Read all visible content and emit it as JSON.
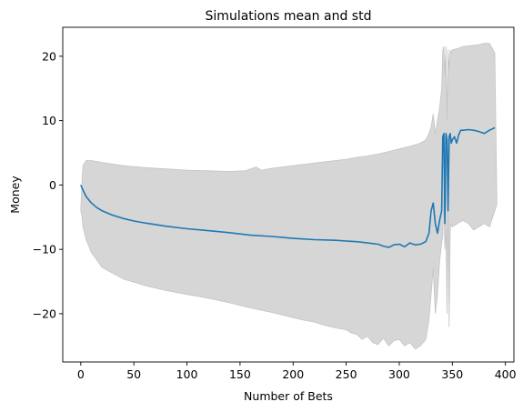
{
  "chart_data": {
    "type": "line",
    "title": "Simulations mean and std",
    "xlabel": "Number of Bets",
    "ylabel": "Money",
    "xlim": [
      -17,
      408
    ],
    "ylim": [
      -27.5,
      24.5
    ],
    "x_ticks": [
      0,
      50,
      100,
      150,
      200,
      250,
      300,
      350,
      400
    ],
    "y_ticks": [
      -20,
      -10,
      0,
      10,
      20
    ],
    "grid": false,
    "legend": "none",
    "colors": {
      "mean_line": "#1f77b4",
      "std_band": "#d6d6d6",
      "std_band_edge": "#c4c4c4"
    },
    "series": [
      {
        "role": "mean",
        "x": [
          0,
          2,
          5,
          10,
          15,
          20,
          30,
          40,
          50,
          60,
          80,
          100,
          120,
          140,
          160,
          180,
          200,
          220,
          240,
          250,
          260,
          270,
          280,
          285,
          290,
          295,
          300,
          305,
          310,
          315,
          320,
          325,
          328,
          330,
          332,
          334,
          336,
          338,
          340,
          341,
          342,
          343,
          344,
          345,
          346,
          347,
          348,
          349,
          350,
          352,
          354,
          356,
          358,
          360,
          365,
          370,
          375,
          380,
          385,
          390
        ],
        "values": [
          0,
          -0.8,
          -1.8,
          -2.8,
          -3.5,
          -4.0,
          -4.7,
          -5.2,
          -5.6,
          -5.9,
          -6.4,
          -6.8,
          -7.1,
          -7.4,
          -7.8,
          -8.0,
          -8.3,
          -8.5,
          -8.6,
          -8.7,
          -8.8,
          -9.0,
          -9.2,
          -9.5,
          -9.7,
          -9.3,
          -9.2,
          -9.6,
          -9.0,
          -9.3,
          -9.2,
          -8.8,
          -7.5,
          -4.0,
          -2.8,
          -6.0,
          -7.5,
          -5.5,
          -4.0,
          7.5,
          8.0,
          -6.0,
          8.0,
          7.0,
          -4.0,
          7.5,
          8.0,
          6.5,
          7.0,
          7.5,
          6.5,
          7.8,
          8.5,
          8.5,
          8.6,
          8.5,
          8.3,
          8.0,
          8.5,
          8.9
        ]
      },
      {
        "role": "std_upper",
        "x": [
          0,
          1,
          2,
          5,
          10,
          20,
          40,
          60,
          80,
          100,
          120,
          140,
          155,
          160,
          165,
          170,
          180,
          200,
          220,
          240,
          250,
          260,
          270,
          280,
          290,
          300,
          310,
          320,
          325,
          328,
          330,
          332,
          334,
          336,
          338,
          340,
          341,
          342,
          343,
          344,
          345,
          346,
          347,
          348,
          349,
          350,
          355,
          360,
          365,
          370,
          375,
          380,
          385,
          390,
          392
        ],
        "values": [
          -4.0,
          0.0,
          3.0,
          3.8,
          3.8,
          3.5,
          3.0,
          2.7,
          2.5,
          2.3,
          2.2,
          2.1,
          2.2,
          2.5,
          2.8,
          2.3,
          2.6,
          3.0,
          3.4,
          3.8,
          4.0,
          4.3,
          4.5,
          4.8,
          5.2,
          5.6,
          6.0,
          6.5,
          7.0,
          8.0,
          9.0,
          11.0,
          8.0,
          10.0,
          12.0,
          15.0,
          21.0,
          21.5,
          17.0,
          21.5,
          10.0,
          21.0,
          18.0,
          21.0,
          20.5,
          21.0,
          21.2,
          21.5,
          21.6,
          21.7,
          21.8,
          22.0,
          22.0,
          20.5,
          -3.0
        ]
      },
      {
        "role": "std_lower",
        "x": [
          0,
          1,
          2,
          5,
          10,
          20,
          40,
          60,
          80,
          100,
          120,
          140,
          160,
          180,
          200,
          210,
          220,
          230,
          240,
          250,
          255,
          260,
          265,
          270,
          275,
          280,
          285,
          290,
          295,
          300,
          305,
          310,
          315,
          320,
          325,
          328,
          330,
          332,
          334,
          336,
          338,
          340,
          341,
          342,
          343,
          344,
          345,
          346,
          347,
          348,
          349,
          350,
          355,
          360,
          365,
          370,
          375,
          380,
          385,
          390,
          392
        ],
        "values": [
          -4.0,
          -4.8,
          -6.5,
          -8.5,
          -10.5,
          -12.8,
          -14.6,
          -15.6,
          -16.4,
          -17.0,
          -17.6,
          -18.3,
          -19.1,
          -19.8,
          -20.6,
          -21.0,
          -21.3,
          -21.8,
          -22.2,
          -22.5,
          -23.0,
          -23.2,
          -24.0,
          -23.5,
          -24.5,
          -24.8,
          -23.8,
          -25.0,
          -24.2,
          -24.0,
          -25.0,
          -24.5,
          -25.5,
          -25.0,
          -24.0,
          -21.0,
          -17.0,
          -13.0,
          -20.0,
          -17.0,
          -12.0,
          -9.0,
          -8.0,
          -2.0,
          -10.0,
          -7.0,
          -20.0,
          -4.0,
          -22.0,
          -7.0,
          -6.0,
          -6.5,
          -6.0,
          -5.5,
          -6.0,
          -7.0,
          -6.5,
          -6.0,
          -6.5,
          -4.0,
          -3.0
        ]
      }
    ]
  }
}
